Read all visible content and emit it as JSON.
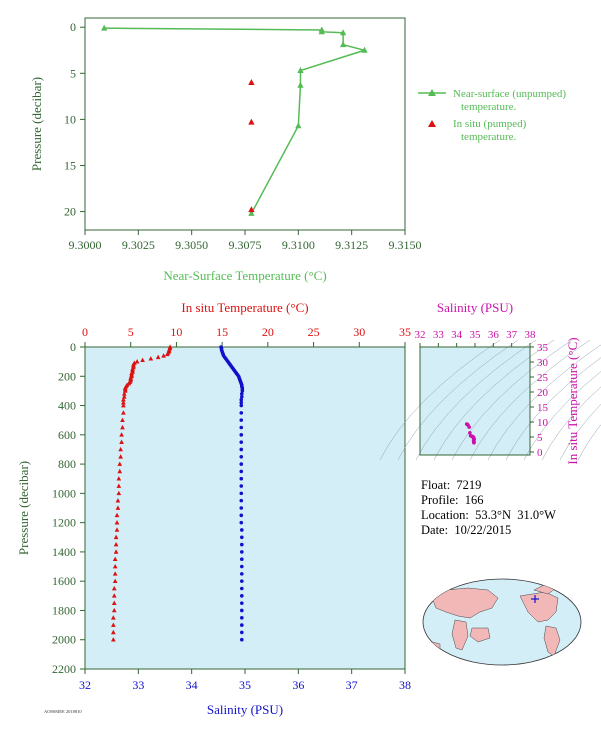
{
  "colors": {
    "near_surface": "#55bb55",
    "axis_green": "#336633",
    "in_situ_red": "#dd1111",
    "salinity_blue": "#1111cc",
    "salinity_magenta": "#cc11aa",
    "panel_bg": "#d4eef8",
    "land": "#f2b8b8",
    "ocean": "#d4eef8"
  },
  "float_info": {
    "float_label": "Float:",
    "float_value": "7219",
    "profile_label": "Profile:",
    "profile_value": "166",
    "location_label": "Location:",
    "location_value": "53.3°N  31.0°W",
    "date_label": "Date:",
    "date_value": "10/22/2015"
  },
  "footer_code": "AO8SMEE 2018810",
  "chart_data": [
    {
      "type": "line",
      "xlabel": "Near-Surface Temperature (°C)",
      "ylabel": "Pressure (decibar)",
      "xlim": [
        9.3,
        9.315
      ],
      "ylim": [
        22,
        -1
      ],
      "y_inverted": true,
      "xticks": [
        "9.3000",
        "9.3025",
        "9.3050",
        "9.3075",
        "9.3100",
        "9.3125",
        "9.3150"
      ],
      "xtick_values": [
        9.3,
        9.3025,
        9.305,
        9.3075,
        9.31,
        9.3125,
        9.315
      ],
      "yticks": [
        "0",
        "5",
        "10",
        "15",
        "20"
      ],
      "ytick_values": [
        0,
        5,
        10,
        15,
        20
      ],
      "legend_position": "right",
      "series": [
        {
          "name": "Near-surface (unpumped) temperature.",
          "marker": "triangle-line",
          "x": [
            9.3009,
            9.3111,
            9.3111,
            9.3121,
            9.3121,
            9.3131,
            9.3101,
            9.3101,
            9.31,
            9.3078
          ],
          "y": [
            0.1,
            0.3,
            0.5,
            0.6,
            1.9,
            2.5,
            4.7,
            6.3,
            10.7,
            20.2
          ]
        },
        {
          "name": "In situ (pumped) temperature.",
          "marker": "triangle",
          "x": [
            9.3078,
            9.3078,
            9.3078
          ],
          "y": [
            6.0,
            10.3,
            19.8
          ]
        }
      ]
    },
    {
      "type": "scatter",
      "title_top": "In situ Temperature (°C)",
      "xlabel": "Salinity (PSU)",
      "ylabel": "Pressure (decibar)",
      "temp_xlim": [
        0,
        35
      ],
      "sal_xlim": [
        32,
        38
      ],
      "ylim": [
        2200,
        0
      ],
      "y_inverted": true,
      "temp_ticks": [
        "0",
        "5",
        "10",
        "15",
        "20",
        "25",
        "30",
        "35"
      ],
      "temp_tick_values": [
        0,
        5,
        10,
        15,
        20,
        25,
        30,
        35
      ],
      "sal_ticks": [
        "32",
        "33",
        "34",
        "35",
        "36",
        "37",
        "38"
      ],
      "sal_tick_values": [
        32,
        33,
        34,
        35,
        36,
        37,
        38
      ],
      "pressure_ticks": [
        "0",
        "200",
        "400",
        "600",
        "800",
        "1000",
        "1200",
        "1400",
        "1600",
        "1800",
        "2000",
        "2200"
      ],
      "pressure_tick_values": [
        0,
        200,
        400,
        600,
        800,
        1000,
        1200,
        1400,
        1600,
        1800,
        2000,
        2200
      ],
      "temperature": {
        "pressure": [
          0,
          10,
          20,
          30,
          40,
          50,
          60,
          70,
          80,
          90,
          100,
          110,
          120,
          130,
          140,
          150,
          160,
          170,
          180,
          190,
          200,
          210,
          220,
          230,
          240,
          250,
          260,
          270,
          280,
          290,
          300,
          320,
          340,
          360,
          380,
          400,
          450,
          500,
          550,
          600,
          650,
          700,
          750,
          800,
          850,
          900,
          950,
          1000,
          1050,
          1100,
          1150,
          1200,
          1250,
          1300,
          1350,
          1400,
          1450,
          1500,
          1550,
          1600,
          1650,
          1700,
          1750,
          1800,
          1850,
          1900,
          1950,
          2000
        ],
        "values": [
          9.3,
          9.3,
          9.2,
          9.2,
          9.1,
          9.0,
          8.6,
          8.0,
          7.2,
          6.3,
          5.7,
          5.4,
          5.3,
          5.3,
          5.3,
          5.2,
          5.2,
          5.2,
          5.1,
          5.1,
          5.1,
          5.0,
          5.0,
          5.0,
          4.9,
          4.8,
          4.6,
          4.5,
          4.4,
          4.4,
          4.4,
          4.3,
          4.3,
          4.2,
          4.2,
          4.2,
          4.2,
          4.1,
          4.1,
          4.0,
          4.0,
          3.9,
          3.9,
          3.8,
          3.8,
          3.7,
          3.7,
          3.7,
          3.6,
          3.6,
          3.5,
          3.5,
          3.5,
          3.4,
          3.4,
          3.4,
          3.3,
          3.3,
          3.3,
          3.3,
          3.2,
          3.2,
          3.2,
          3.2,
          3.1,
          3.1,
          3.1,
          3.1
        ]
      },
      "salinity": {
        "pressure": [
          0,
          10,
          20,
          30,
          40,
          50,
          60,
          70,
          80,
          90,
          100,
          110,
          120,
          130,
          140,
          150,
          160,
          170,
          180,
          190,
          200,
          210,
          220,
          230,
          240,
          250,
          260,
          270,
          280,
          290,
          300,
          320,
          340,
          360,
          380,
          400,
          450,
          500,
          550,
          600,
          650,
          700,
          750,
          800,
          850,
          900,
          950,
          1000,
          1050,
          1100,
          1150,
          1200,
          1250,
          1300,
          1350,
          1400,
          1450,
          1500,
          1550,
          1600,
          1650,
          1700,
          1750,
          1800,
          1850,
          1900,
          1950,
          2000
        ],
        "values": [
          34.55,
          34.56,
          34.56,
          34.57,
          34.58,
          34.59,
          34.6,
          34.62,
          34.64,
          34.66,
          34.68,
          34.7,
          34.72,
          34.74,
          34.76,
          34.78,
          34.8,
          34.82,
          34.84,
          34.86,
          34.88,
          34.89,
          34.9,
          34.91,
          34.92,
          34.93,
          34.94,
          34.94,
          34.95,
          34.95,
          34.95,
          34.94,
          34.94,
          34.93,
          34.93,
          34.93,
          34.93,
          34.93,
          34.93,
          34.93,
          34.93,
          34.93,
          34.93,
          34.93,
          34.93,
          34.93,
          34.93,
          34.93,
          34.93,
          34.93,
          34.93,
          34.93,
          34.94,
          34.94,
          34.94,
          34.94,
          34.94,
          34.94,
          34.94,
          34.94,
          34.94,
          34.94,
          34.94,
          34.94,
          34.94,
          34.94,
          34.94,
          34.94
        ]
      }
    },
    {
      "type": "scatter",
      "xlabel": "Salinity (PSU)",
      "ylabel": "In situ Temperature (°C)",
      "xlim": [
        32,
        38
      ],
      "ylim": [
        -1,
        35
      ],
      "xticks": [
        "32",
        "33",
        "34",
        "35",
        "36",
        "37",
        "38"
      ],
      "xtick_values": [
        32,
        33,
        34,
        35,
        36,
        37,
        38
      ],
      "yticks": [
        "0",
        "5",
        "10",
        "15",
        "20",
        "25",
        "30",
        "35"
      ],
      "ytick_values": [
        0,
        5,
        10,
        15,
        20,
        25,
        30,
        35
      ],
      "points": {
        "salinity": [
          34.55,
          34.58,
          34.62,
          34.68,
          34.72,
          34.76,
          34.8,
          34.84,
          34.88,
          34.9,
          34.92,
          34.93,
          34.94,
          34.94,
          34.95,
          34.95,
          34.94,
          34.93,
          34.93,
          34.93,
          34.93,
          34.93,
          34.93,
          34.94,
          34.94,
          34.94,
          34.94,
          34.94
        ],
        "temperature": [
          9.3,
          9.2,
          9.0,
          8.3,
          6.4,
          5.4,
          5.3,
          5.2,
          5.1,
          5.0,
          4.9,
          4.6,
          4.4,
          4.4,
          4.3,
          4.2,
          4.2,
          4.1,
          4.0,
          3.9,
          3.8,
          3.7,
          3.6,
          3.5,
          3.4,
          3.3,
          3.2,
          3.1
        ]
      }
    }
  ]
}
